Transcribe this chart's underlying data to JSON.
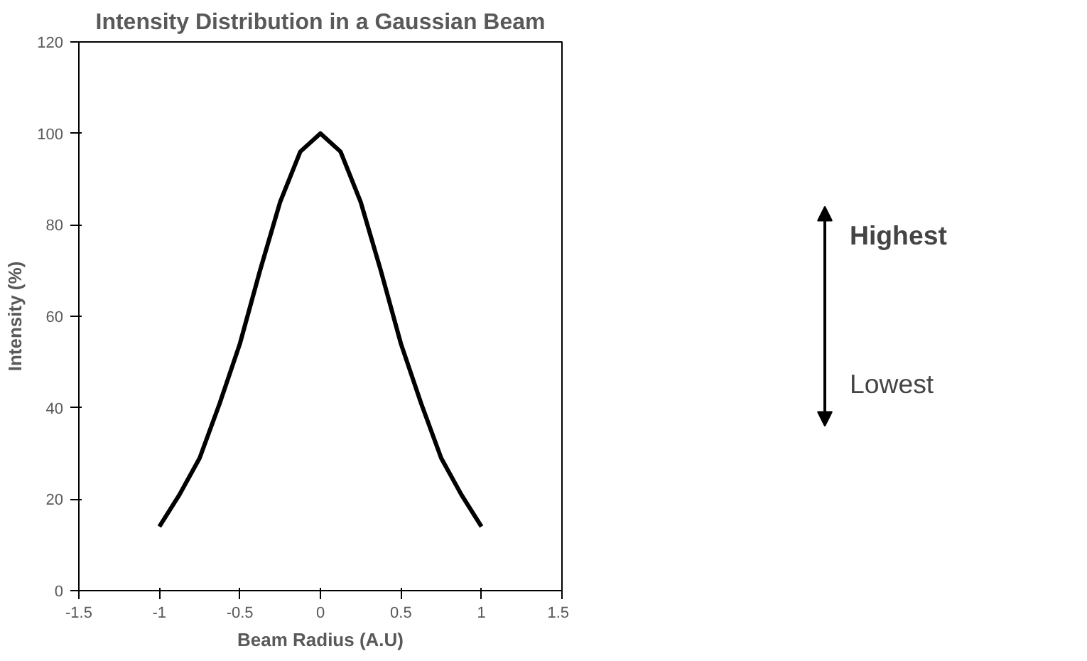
{
  "chart_data": {
    "type": "line",
    "title": "Intensity Distribution in a Gaussian Beam",
    "xlabel": "Beam Radius (A.U)",
    "ylabel": "Intensity (%)",
    "x": [
      -1,
      -0.875,
      -0.75,
      -0.625,
      -0.5,
      -0.375,
      -0.25,
      -0.125,
      0,
      0.125,
      0.25,
      0.375,
      0.5,
      0.625,
      0.75,
      0.875,
      1
    ],
    "series": [
      {
        "color": "#000000",
        "values": [
          14,
          21,
          29,
          41,
          54,
          70,
          85,
          96,
          100,
          96,
          85,
          70,
          54,
          41,
          29,
          21,
          14
        ]
      }
    ],
    "xlim": [
      -1.5,
      1.5
    ],
    "xticks": [
      -1.5,
      -1,
      -0.5,
      0,
      0.5,
      1,
      1.5
    ],
    "ylim": [
      0,
      120
    ],
    "yticks": [
      0,
      20,
      40,
      60,
      80,
      100,
      120
    ],
    "grid": false,
    "marker": "none",
    "line_style": "solid",
    "annotations": [
      "Highest",
      "Lowest"
    ]
  }
}
